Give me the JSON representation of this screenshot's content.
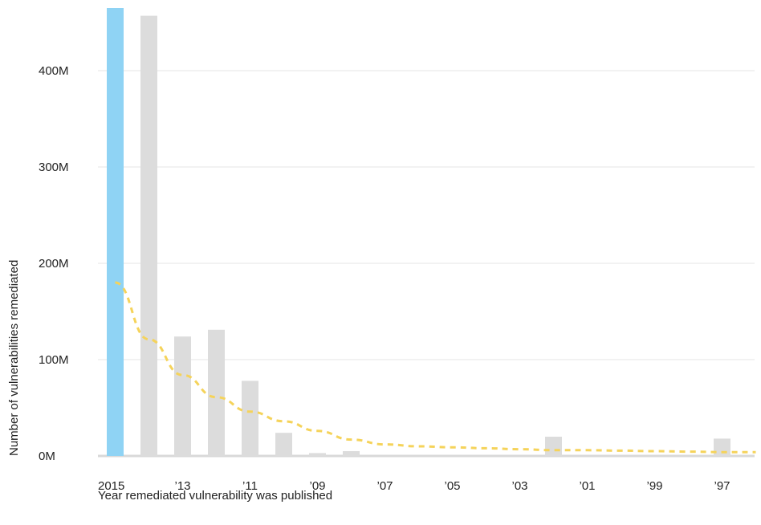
{
  "chart_data": {
    "type": "bar",
    "xlabel": "Year remediated vulnerability was published",
    "ylabel": "Number of vulnerabilities remediated",
    "ylim": [
      0,
      465
    ],
    "y_unit": "M",
    "y_ticks": [
      {
        "value": 0,
        "label": "0M"
      },
      {
        "value": 100,
        "label": "100M"
      },
      {
        "value": 200,
        "label": "200M"
      },
      {
        "value": 300,
        "label": "300M"
      },
      {
        "value": 400,
        "label": "400M"
      }
    ],
    "x_tick_labels": [
      {
        "year": 2015,
        "label": "2015"
      },
      {
        "year": 2013,
        "label": "’13"
      },
      {
        "year": 2011,
        "label": "’11"
      },
      {
        "year": 2009,
        "label": "’09"
      },
      {
        "year": 2007,
        "label": "’07"
      },
      {
        "year": 2005,
        "label": "’05"
      },
      {
        "year": 2003,
        "label": "’03"
      },
      {
        "year": 2001,
        "label": "’01"
      },
      {
        "year": 1999,
        "label": "’99"
      },
      {
        "year": 1997,
        "label": "’97"
      }
    ],
    "categories": [
      2015,
      2014,
      2013,
      2012,
      2011,
      2010,
      2009,
      2008,
      2007,
      2006,
      2005,
      2004,
      2003,
      2002,
      2001,
      2000,
      1999,
      1998,
      1997,
      1996
    ],
    "values": [
      465,
      457,
      124,
      131,
      78,
      24,
      3,
      5,
      0,
      0,
      0,
      0,
      0,
      20,
      0,
      0,
      0,
      0,
      18,
      0
    ],
    "highlight_category": 2015,
    "trend_values": [
      180,
      121,
      84,
      61,
      46,
      36,
      26,
      17,
      12,
      10,
      9,
      8,
      7,
      6,
      6,
      5.5,
      5,
      4.5,
      4,
      4
    ],
    "grid": true,
    "colors": {
      "highlight_bar": "#8fd3f4",
      "bar": "#dcdcdc",
      "trend": "#f5d35a",
      "grid": "#e6e6e6",
      "baseline": "#d9d9d9"
    }
  }
}
